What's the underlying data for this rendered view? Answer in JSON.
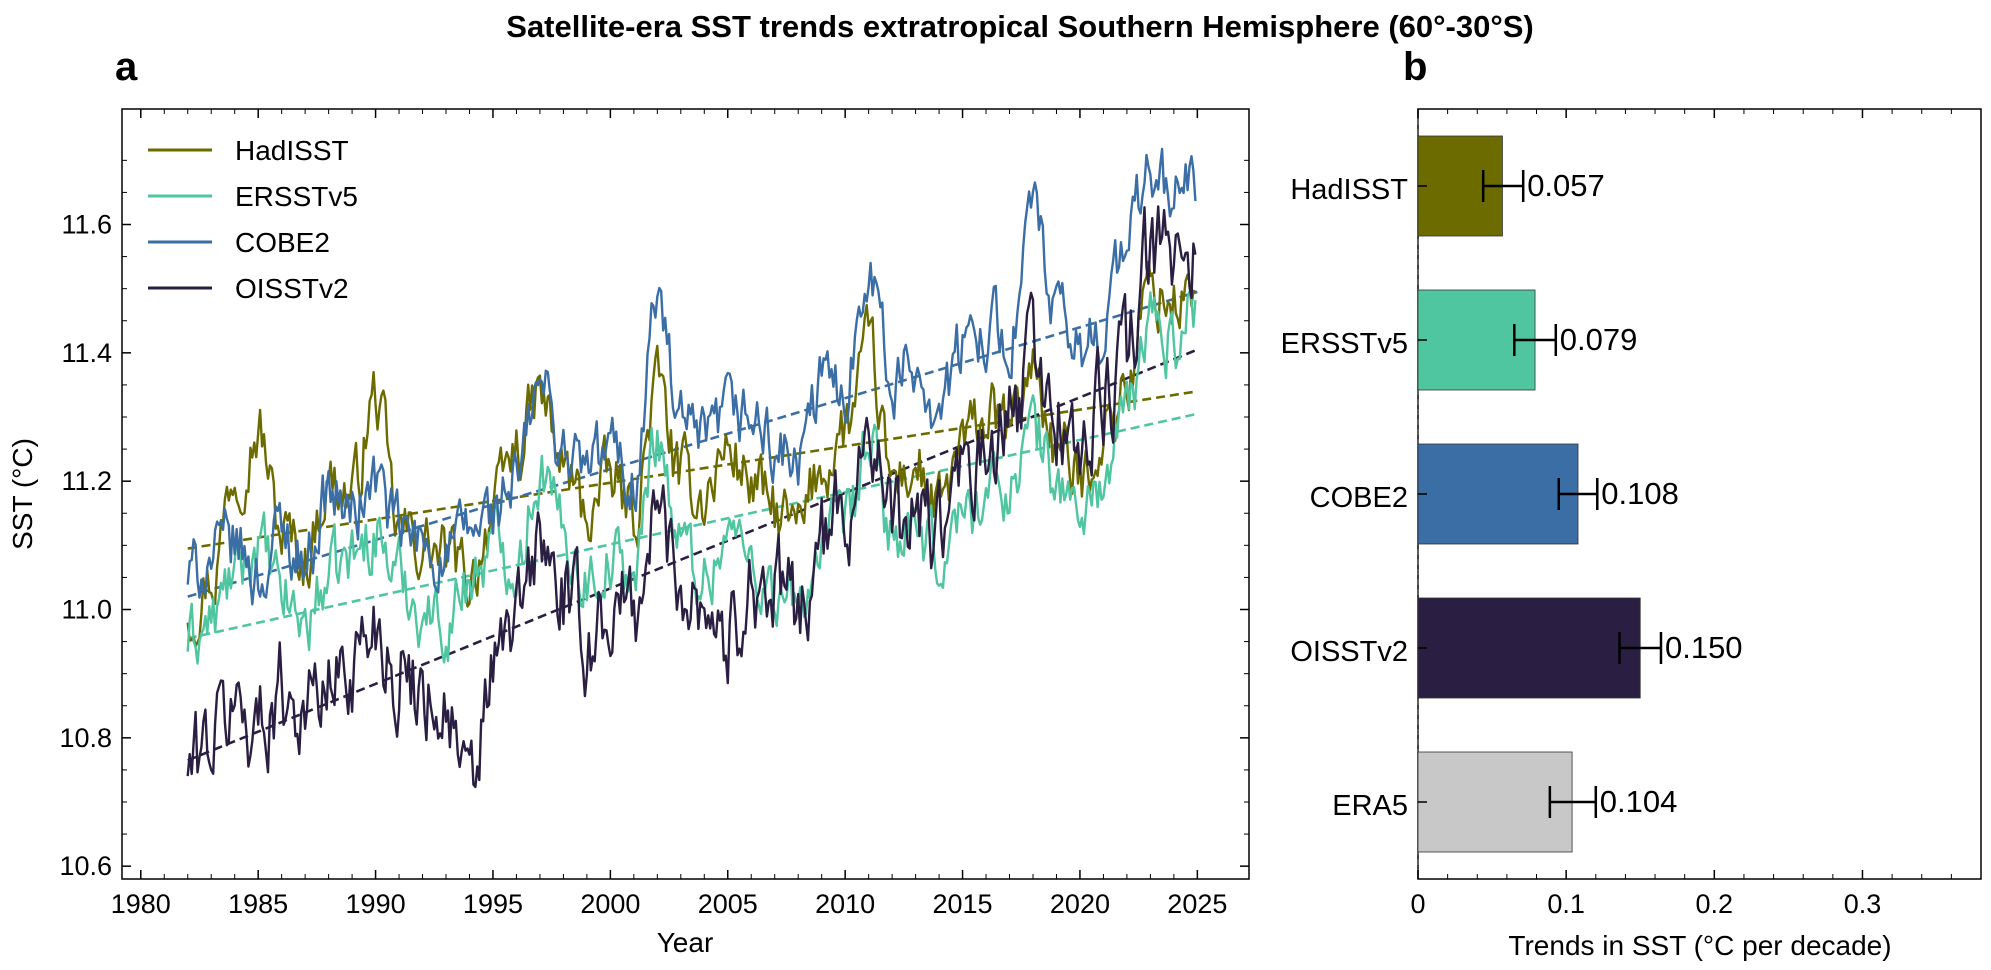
{
  "figure_title": "Satellite-era SST trends extratropical Southern Hemisphere (60°-30°S)",
  "colors": {
    "HadISST": "#6b6b00",
    "ERSSTv5": "#4fc5a0",
    "COBE2": "#3a6ea5",
    "OISSTv2": "#2a1f42",
    "ERA5": "#c8c8c8"
  },
  "chart_data": [
    {
      "panel": "a",
      "type": "line",
      "title": "",
      "xlabel": "Year",
      "ylabel": "SST (°C)",
      "xlim": [
        1979.2,
        2027.2
      ],
      "ylim": [
        10.58,
        11.78
      ],
      "xticks": [
        1980,
        1985,
        1990,
        1995,
        2000,
        2005,
        2010,
        2015,
        2020,
        2025
      ],
      "yticks": [
        10.6,
        10.8,
        11.0,
        11.2,
        11.4,
        11.6
      ],
      "ytick_labels": [
        "10.6",
        "10.8",
        "11.0",
        "11.2",
        "11.4",
        "11.6"
      ],
      "legend_position": "top-left",
      "series": [
        {
          "name": "HadISST",
          "trend_start": [
            1982.0,
            11.095
          ],
          "trend_end": [
            2025.0,
            11.34
          ],
          "anchors": [
            [
              1982.0,
              11.0
            ],
            [
              1983.0,
              11.05
            ],
            [
              1984.0,
              11.22
            ],
            [
              1985.0,
              11.28
            ],
            [
              1986.0,
              11.12
            ],
            [
              1987.0,
              11.08
            ],
            [
              1988.0,
              11.2
            ],
            [
              1989.0,
              11.18
            ],
            [
              1990.0,
              11.33
            ],
            [
              1991.0,
              11.12
            ],
            [
              1992.0,
              11.1
            ],
            [
              1993.0,
              11.08
            ],
            [
              1994.0,
              11.05
            ],
            [
              1995.0,
              11.15
            ],
            [
              1996.0,
              11.25
            ],
            [
              1997.0,
              11.33
            ],
            [
              1998.0,
              11.22
            ],
            [
              1999.0,
              11.15
            ],
            [
              2000.0,
              11.2
            ],
            [
              2001.0,
              11.15
            ],
            [
              2002.0,
              11.35
            ],
            [
              2003.0,
              11.2
            ],
            [
              2004.0,
              11.18
            ],
            [
              2005.0,
              11.25
            ],
            [
              2006.0,
              11.2
            ],
            [
              2007.0,
              11.15
            ],
            [
              2008.0,
              11.12
            ],
            [
              2009.0,
              11.22
            ],
            [
              2010.0,
              11.28
            ],
            [
              2011.0,
              11.4
            ],
            [
              2012.0,
              11.2
            ],
            [
              2013.0,
              11.22
            ],
            [
              2014.0,
              11.15
            ],
            [
              2015.0,
              11.25
            ],
            [
              2016.0,
              11.3
            ],
            [
              2017.0,
              11.28
            ],
            [
              2018.0,
              11.38
            ],
            [
              2019.0,
              11.25
            ],
            [
              2020.0,
              11.2
            ],
            [
              2021.0,
              11.28
            ],
            [
              2022.0,
              11.35
            ],
            [
              2023.0,
              11.5
            ],
            [
              2024.0,
              11.48
            ],
            [
              2025.0,
              11.5
            ]
          ]
        },
        {
          "name": "ERSSTv5",
          "trend_start": [
            1982.0,
            10.955
          ],
          "trend_end": [
            2025.0,
            11.305
          ],
          "anchors": [
            [
              1982.0,
              10.95
            ],
            [
              1983.0,
              10.98
            ],
            [
              1984.0,
              11.05
            ],
            [
              1985.0,
              11.1
            ],
            [
              1986.0,
              11.02
            ],
            [
              1987.0,
              10.98
            ],
            [
              1988.0,
              11.05
            ],
            [
              1989.0,
              11.08
            ],
            [
              1990.0,
              11.12
            ],
            [
              1991.0,
              11.05
            ],
            [
              1992.0,
              11.0
            ],
            [
              1993.0,
              10.98
            ],
            [
              1994.0,
              11.05
            ],
            [
              1995.0,
              11.1
            ],
            [
              1996.0,
              11.08
            ],
            [
              1997.0,
              11.22
            ],
            [
              1998.0,
              11.12
            ],
            [
              1999.0,
              11.05
            ],
            [
              2000.0,
              11.08
            ],
            [
              2001.0,
              11.05
            ],
            [
              2002.0,
              11.28
            ],
            [
              2003.0,
              11.1
            ],
            [
              2004.0,
              11.05
            ],
            [
              2005.0,
              11.12
            ],
            [
              2006.0,
              11.08
            ],
            [
              2007.0,
              11.02
            ],
            [
              2008.0,
              11.0
            ],
            [
              2009.0,
              11.1
            ],
            [
              2010.0,
              11.12
            ],
            [
              2011.0,
              11.25
            ],
            [
              2012.0,
              11.12
            ],
            [
              2013.0,
              11.1
            ],
            [
              2014.0,
              11.08
            ],
            [
              2015.0,
              11.15
            ],
            [
              2016.0,
              11.18
            ],
            [
              2017.0,
              11.2
            ],
            [
              2018.0,
              11.28
            ],
            [
              2019.0,
              11.2
            ],
            [
              2020.0,
              11.15
            ],
            [
              2021.0,
              11.2
            ],
            [
              2022.0,
              11.3
            ],
            [
              2023.0,
              11.45
            ],
            [
              2024.0,
              11.42
            ],
            [
              2025.0,
              11.48
            ]
          ]
        },
        {
          "name": "COBE2",
          "trend_start": [
            1982.0,
            11.02
          ],
          "trend_end": [
            2025.0,
            11.495
          ],
          "anchors": [
            [
              1982.0,
              11.05
            ],
            [
              1983.0,
              11.08
            ],
            [
              1984.0,
              11.1
            ],
            [
              1985.0,
              11.05
            ],
            [
              1986.0,
              11.12
            ],
            [
              1987.0,
              11.08
            ],
            [
              1988.0,
              11.18
            ],
            [
              1989.0,
              11.15
            ],
            [
              1990.0,
              11.2
            ],
            [
              1991.0,
              11.12
            ],
            [
              1992.0,
              11.1
            ],
            [
              1993.0,
              11.08
            ],
            [
              1994.0,
              11.12
            ],
            [
              1995.0,
              11.15
            ],
            [
              1996.0,
              11.2
            ],
            [
              1997.0,
              11.35
            ],
            [
              1998.0,
              11.25
            ],
            [
              1999.0,
              11.22
            ],
            [
              2000.0,
              11.25
            ],
            [
              2001.0,
              11.2
            ],
            [
              2002.0,
              11.48
            ],
            [
              2003.0,
              11.28
            ],
            [
              2004.0,
              11.25
            ],
            [
              2005.0,
              11.3
            ],
            [
              2006.0,
              11.3
            ],
            [
              2007.0,
              11.25
            ],
            [
              2008.0,
              11.22
            ],
            [
              2009.0,
              11.35
            ],
            [
              2010.0,
              11.35
            ],
            [
              2011.0,
              11.55
            ],
            [
              2012.0,
              11.35
            ],
            [
              2013.0,
              11.38
            ],
            [
              2014.0,
              11.32
            ],
            [
              2015.0,
              11.4
            ],
            [
              2016.0,
              11.45
            ],
            [
              2017.0,
              11.42
            ],
            [
              2018.0,
              11.62
            ],
            [
              2019.0,
              11.45
            ],
            [
              2020.0,
              11.4
            ],
            [
              2021.0,
              11.45
            ],
            [
              2022.0,
              11.58
            ],
            [
              2023.0,
              11.68
            ],
            [
              2024.0,
              11.65
            ],
            [
              2025.0,
              11.67
            ]
          ]
        },
        {
          "name": "OISSTv2",
          "trend_start": [
            1982.0,
            10.765
          ],
          "trend_end": [
            2025.0,
            11.405
          ],
          "anchors": [
            [
              1982.0,
              10.75
            ],
            [
              1983.0,
              10.8
            ],
            [
              1984.0,
              10.85
            ],
            [
              1985.0,
              10.82
            ],
            [
              1986.0,
              10.88
            ],
            [
              1987.0,
              10.85
            ],
            [
              1988.0,
              10.88
            ],
            [
              1989.0,
              10.92
            ],
            [
              1990.0,
              10.98
            ],
            [
              1991.0,
              10.9
            ],
            [
              1992.0,
              10.88
            ],
            [
              1993.0,
              10.85
            ],
            [
              1994.0,
              10.7
            ],
            [
              1995.0,
              10.9
            ],
            [
              1996.0,
              10.98
            ],
            [
              1997.0,
              11.1
            ],
            [
              1998.0,
              11.02
            ],
            [
              1999.0,
              10.95
            ],
            [
              2000.0,
              11.0
            ],
            [
              2001.0,
              11.0
            ],
            [
              2002.0,
              11.15
            ],
            [
              2003.0,
              11.05
            ],
            [
              2004.0,
              11.02
            ],
            [
              2005.0,
              10.95
            ],
            [
              2006.0,
              11.05
            ],
            [
              2007.0,
              11.02
            ],
            [
              2008.0,
              11.0
            ],
            [
              2009.0,
              11.1
            ],
            [
              2010.0,
              11.15
            ],
            [
              2011.0,
              11.3
            ],
            [
              2012.0,
              11.12
            ],
            [
              2013.0,
              11.15
            ],
            [
              2014.0,
              11.12
            ],
            [
              2015.0,
              11.2
            ],
            [
              2016.0,
              11.22
            ],
            [
              2017.0,
              11.28
            ],
            [
              2018.0,
              11.4
            ],
            [
              2019.0,
              11.3
            ],
            [
              2020.0,
              11.25
            ],
            [
              2021.0,
              11.32
            ],
            [
              2022.0,
              11.4
            ],
            [
              2023.0,
              11.55
            ],
            [
              2024.0,
              11.55
            ],
            [
              2025.0,
              11.58
            ]
          ]
        }
      ]
    },
    {
      "panel": "b",
      "type": "bar",
      "orientation": "horizontal",
      "title": "",
      "xlabel": "Trends in SST (°C per decade)",
      "ylabel": "",
      "xlim": [
        0,
        0.38
      ],
      "xticks": [
        0,
        0.1,
        0.2,
        0.3
      ],
      "xtick_labels": [
        "0",
        "0.1",
        "0.2",
        "0.3"
      ],
      "categories": [
        "HadISST",
        "ERSSTv5",
        "COBE2",
        "OISSTv2",
        "ERA5"
      ],
      "values": [
        0.057,
        0.079,
        0.108,
        0.15,
        0.104
      ],
      "error_low": [
        0.044,
        0.065,
        0.095,
        0.136,
        0.089
      ],
      "error_high": [
        0.071,
        0.093,
        0.121,
        0.164,
        0.12
      ],
      "value_labels": [
        "0.057",
        "0.079",
        "0.108",
        "0.150",
        "0.104"
      ]
    }
  ]
}
